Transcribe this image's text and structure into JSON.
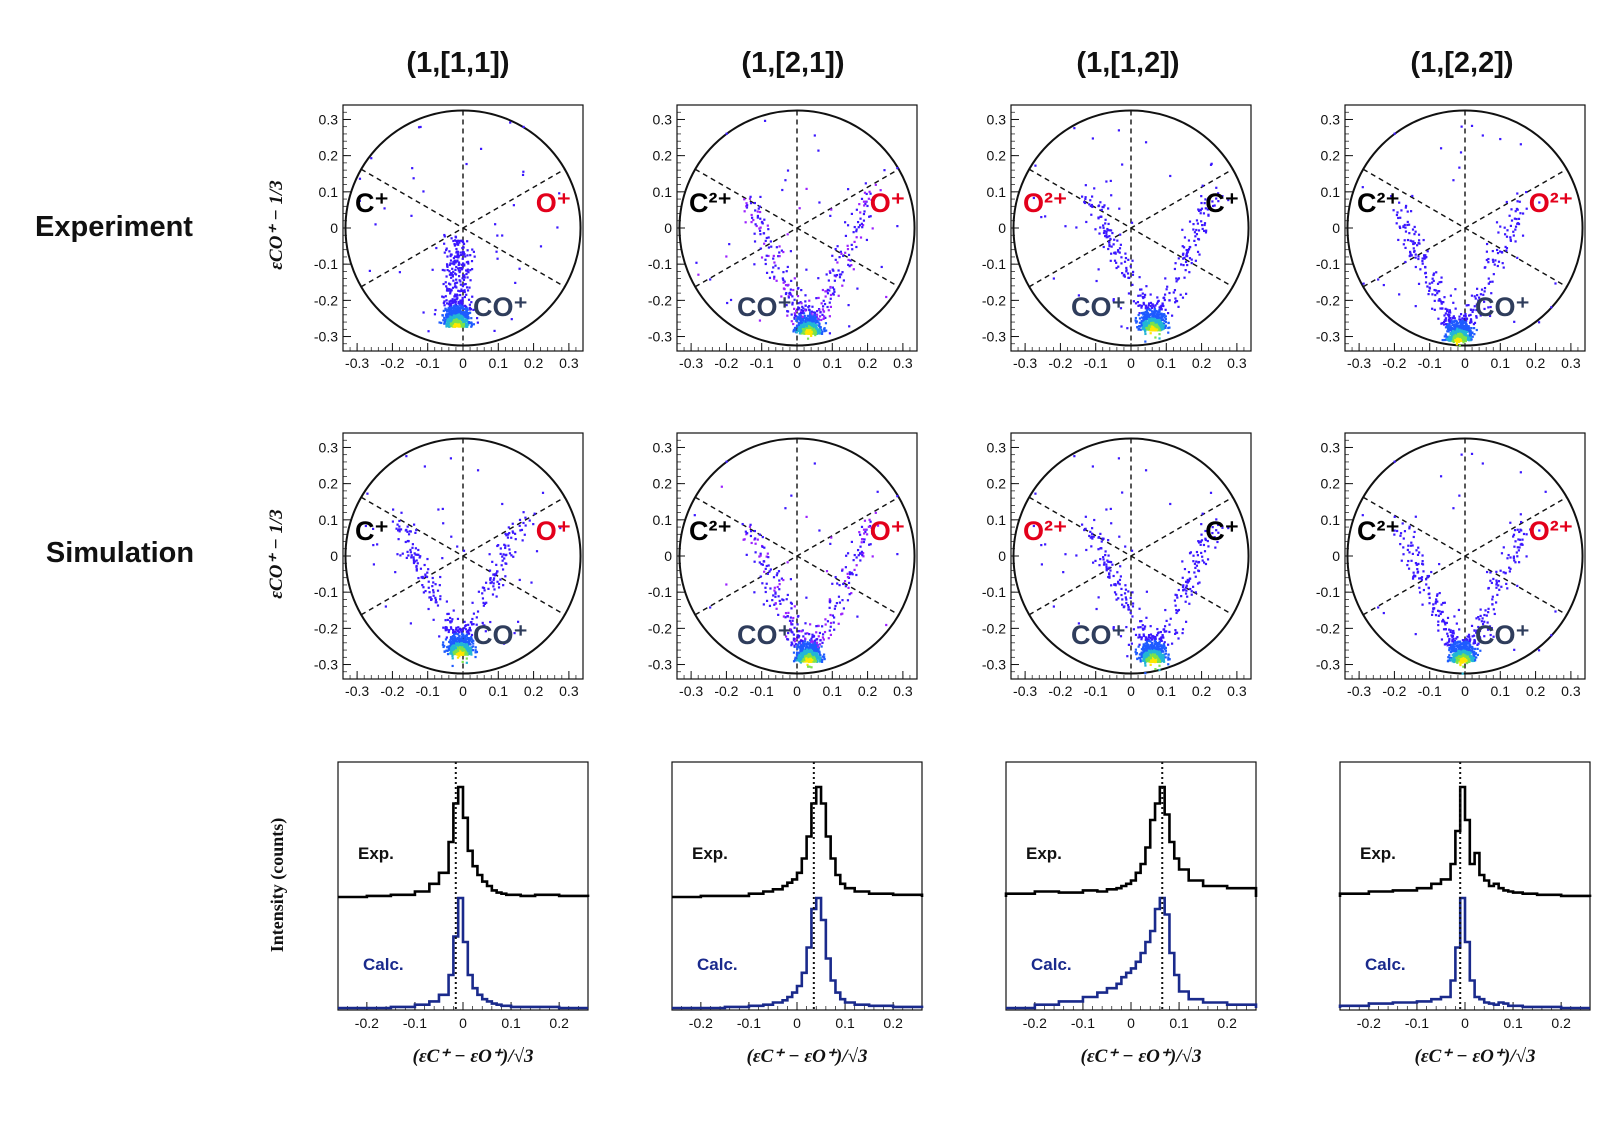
{
  "columns": [
    {
      "title": "(1,[1,1])",
      "upper_left": "C⁺",
      "upper_right": "O⁺",
      "bottom": "CO⁺",
      "left_color": "black",
      "right_color": "red"
    },
    {
      "title": "(1,[2,1])",
      "upper_left": "C²⁺",
      "upper_right": "O⁺",
      "bottom": "CO⁺",
      "left_color": "black",
      "right_color": "red"
    },
    {
      "title": "(1,[1,2])",
      "upper_left": "O²⁺",
      "upper_right": "C⁺",
      "bottom": "CO⁺",
      "left_color": "red",
      "right_color": "black"
    },
    {
      "title": "(1,[2,2])",
      "upper_left": "C²⁺",
      "upper_right": "O²⁺",
      "bottom": "CO⁺",
      "left_color": "black",
      "right_color": "red"
    }
  ],
  "rows": {
    "experiment": "Experiment",
    "simulation": "Simulation"
  },
  "dalitz_ylabel": "εCO⁺ − 1/3",
  "hist_ylabel": "Intensity (counts)",
  "hist_xlabel": "(εC⁺ − εO⁺)/√3",
  "legend": {
    "exp": "Exp.",
    "calc": "Calc."
  },
  "colors": {
    "exp_line": "#000000",
    "calc_line": "#1a2a8c",
    "ion_red": "#e3001b",
    "ion_navy": "#2f3d5c",
    "scatter_low": "#3b17ff",
    "scatter_high": "#ffe600"
  },
  "chart_data": [
    {
      "type": "scatter",
      "panel": "Dalitz plots (experiment and simulation)",
      "xlabel": "",
      "ylabel": "εCO⁺ − 1/3",
      "xlim": [
        -0.34,
        0.34
      ],
      "ylim": [
        -0.34,
        0.34
      ],
      "xticks": [
        "-0.3",
        "-0.2",
        "-0.1",
        "0",
        "0.1",
        "0.2",
        "0.3"
      ],
      "yticks": [
        "0.3",
        "0.2",
        "0.1",
        "0",
        "-0.1",
        "-0.2",
        "-0.3"
      ],
      "circle_radius": 0.333,
      "clusters": [
        {
          "row": "Experiment",
          "column": "(1,[1,1])",
          "center_x": -0.02,
          "center_y": -0.27,
          "shape": "vertical band from y=-0.05 to y=-0.33 near x=-0.02"
        },
        {
          "row": "Experiment",
          "column": "(1,[2,1])",
          "center_x": 0.03,
          "center_y": -0.29,
          "shape": "dense spot with broad V-shaped spray"
        },
        {
          "row": "Experiment",
          "column": "(1,[1,2])",
          "center_x": 0.06,
          "center_y": -0.28,
          "shape": "compact spot plus faint streak toward x=0.28"
        },
        {
          "row": "Experiment",
          "column": "(1,[2,2])",
          "center_x": -0.02,
          "center_y": -0.31,
          "shape": "compact spot at bottom"
        },
        {
          "row": "Simulation",
          "column": "(1,[1,1])",
          "center_x": -0.01,
          "center_y": -0.27,
          "shape": "V-shaped distribution spreading toward upper left"
        },
        {
          "row": "Simulation",
          "column": "(1,[2,1])",
          "center_x": 0.03,
          "center_y": -0.29,
          "shape": "V-shaped arms toward (-0.2,0.2) and (0.2,0.15)"
        },
        {
          "row": "Simulation",
          "column": "(1,[1,2])",
          "center_x": 0.06,
          "center_y": -0.29,
          "shape": "narrow V with sparse points above"
        },
        {
          "row": "Simulation",
          "column": "(1,[2,2])",
          "center_x": -0.01,
          "center_y": -0.29,
          "shape": "narrow V with sparse points"
        }
      ]
    },
    {
      "type": "line",
      "panel": "Projected intensity histograms",
      "xlabel": "(εC⁺ − εO⁺)/√3",
      "ylabel": "Intensity (counts)",
      "xlim": [
        -0.26,
        0.26
      ],
      "xticks": [
        "-0.2",
        "-0.1",
        "0",
        "0.1",
        "0.2"
      ],
      "x": [
        -0.26,
        -0.2,
        -0.15,
        -0.1,
        -0.07,
        -0.05,
        -0.03,
        -0.02,
        -0.01,
        0,
        0.01,
        0.02,
        0.03,
        0.04,
        0.05,
        0.06,
        0.07,
        0.08,
        0.09,
        0.1,
        0.12,
        0.15,
        0.2,
        0.26
      ],
      "series": [
        {
          "name": "Exp.",
          "column": "(1,[1,1])",
          "peak_x": -0.015,
          "values": [
            0,
            0.01,
            0.02,
            0.05,
            0.12,
            0.22,
            0.5,
            0.85,
            1.0,
            0.72,
            0.42,
            0.28,
            0.2,
            0.14,
            0.1,
            0.06,
            0.04,
            0.03,
            0.02,
            0.02,
            0.01,
            0.02,
            0.01,
            0
          ]
        },
        {
          "name": "Calc.",
          "column": "(1,[1,1])",
          "peak_x": -0.015,
          "values": [
            0,
            0,
            0.01,
            0.03,
            0.06,
            0.12,
            0.3,
            0.65,
            1.0,
            0.6,
            0.3,
            0.18,
            0.12,
            0.08,
            0.06,
            0.04,
            0.03,
            0.02,
            0.02,
            0.01,
            0.01,
            0.01,
            0,
            0
          ]
        },
        {
          "name": "Exp.",
          "column": "(1,[2,1])",
          "peak_x": 0.035,
          "values": [
            0,
            0.01,
            0.01,
            0.03,
            0.05,
            0.07,
            0.1,
            0.13,
            0.16,
            0.22,
            0.35,
            0.55,
            0.85,
            1.0,
            0.85,
            0.55,
            0.35,
            0.2,
            0.12,
            0.08,
            0.05,
            0.03,
            0.02,
            0.01
          ]
        },
        {
          "name": "Calc.",
          "column": "(1,[2,1])",
          "peak_x": 0.035,
          "values": [
            0,
            0,
            0.01,
            0.02,
            0.03,
            0.05,
            0.07,
            0.1,
            0.14,
            0.2,
            0.32,
            0.55,
            0.9,
            1.0,
            0.8,
            0.45,
            0.25,
            0.14,
            0.08,
            0.05,
            0.03,
            0.02,
            0.01,
            0
          ]
        },
        {
          "name": "Exp.",
          "column": "(1,[1,2])",
          "peak_x": 0.065,
          "values": [
            0.03,
            0.05,
            0.04,
            0.06,
            0.05,
            0.07,
            0.08,
            0.1,
            0.12,
            0.15,
            0.22,
            0.3,
            0.45,
            0.7,
            0.85,
            1.0,
            0.75,
            0.5,
            0.35,
            0.25,
            0.15,
            0.1,
            0.08,
            0.05
          ]
        },
        {
          "name": "Calc.",
          "column": "(1,[1,2])",
          "peak_x": 0.065,
          "values": [
            0,
            0.03,
            0.06,
            0.1,
            0.14,
            0.18,
            0.22,
            0.28,
            0.32,
            0.36,
            0.42,
            0.5,
            0.6,
            0.7,
            0.9,
            1.0,
            0.85,
            0.5,
            0.3,
            0.15,
            0.08,
            0.05,
            0.03,
            0.02
          ]
        },
        {
          "name": "Exp.",
          "column": "(1,[2,2])",
          "peak_x": -0.01,
          "values": [
            0.03,
            0.05,
            0.06,
            0.08,
            0.12,
            0.16,
            0.3,
            0.6,
            1.0,
            0.7,
            0.3,
            0.4,
            0.2,
            0.15,
            0.1,
            0.12,
            0.08,
            0.06,
            0.05,
            0.04,
            0.03,
            0.02,
            0.01,
            0
          ]
        },
        {
          "name": "Calc.",
          "column": "(1,[2,2])",
          "peak_x": -0.01,
          "values": [
            0.02,
            0.04,
            0.05,
            0.06,
            0.08,
            0.1,
            0.25,
            0.55,
            1.0,
            0.6,
            0.25,
            0.1,
            0.08,
            0.05,
            0.04,
            0.03,
            0.05,
            0.04,
            0.02,
            0.02,
            0.01,
            0.01,
            0,
            0
          ]
        }
      ]
    }
  ]
}
